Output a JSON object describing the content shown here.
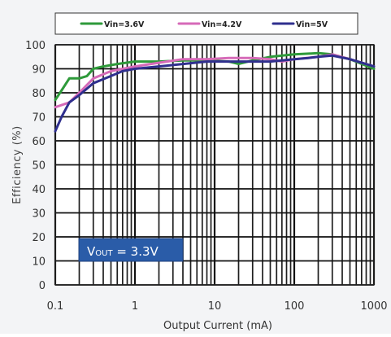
{
  "chart_data": {
    "type": "line",
    "xlabel": "Output Current (mA)",
    "ylabel": "Efficiency (%)",
    "xscale": "log",
    "xlim": [
      0.1,
      1000
    ],
    "ylim": [
      0,
      100
    ],
    "x_ticks": [
      {
        "value": 0.1,
        "label": "0.1"
      },
      {
        "value": 1,
        "label": "1"
      },
      {
        "value": 10,
        "label": "10"
      },
      {
        "value": 100,
        "label": "100"
      },
      {
        "value": 1000,
        "label": "1000"
      }
    ],
    "y_ticks": [
      {
        "value": 0,
        "label": "0"
      },
      {
        "value": 10,
        "label": "10"
      },
      {
        "value": 20,
        "label": "20"
      },
      {
        "value": 30,
        "label": "30"
      },
      {
        "value": 40,
        "label": "40"
      },
      {
        "value": 50,
        "label": "50"
      },
      {
        "value": 60,
        "label": "60"
      },
      {
        "value": 70,
        "label": "70"
      },
      {
        "value": 80,
        "label": "80"
      },
      {
        "value": 90,
        "label": "90"
      },
      {
        "value": 100,
        "label": "100"
      }
    ],
    "grid": true,
    "legend_position": "top",
    "annotation": {
      "main": "V",
      "sub": "OUT",
      "rest": " = 3.3V"
    },
    "series": [
      {
        "name": "Vin=3.6V",
        "color": "#2e9a3a",
        "x": [
          0.1,
          0.12,
          0.15,
          0.2,
          0.25,
          0.3,
          0.4,
          0.6,
          1,
          2,
          4,
          8,
          15,
          20,
          30,
          50,
          100,
          200,
          300,
          500,
          1000
        ],
        "y": [
          77,
          81,
          86,
          86,
          87,
          90,
          91,
          92,
          93,
          93,
          93.5,
          93.5,
          93,
          92,
          93.5,
          95,
          96,
          96.5,
          96,
          94,
          90
        ]
      },
      {
        "name": "Vin=4.2V",
        "color": "#d66ab8",
        "x": [
          0.1,
          0.15,
          0.2,
          0.3,
          0.5,
          1,
          2,
          4,
          8,
          15,
          20,
          30,
          50,
          70,
          100,
          200,
          300,
          500,
          1000
        ],
        "y": [
          74,
          76,
          80,
          86,
          89,
          91,
          92.5,
          94,
          94,
          94.5,
          94.5,
          94.5,
          94,
          93,
          94,
          95,
          96,
          94,
          91
        ]
      },
      {
        "name": "Vin=5V",
        "color": "#2f2f8e",
        "x": [
          0.1,
          0.12,
          0.15,
          0.2,
          0.3,
          0.5,
          0.7,
          1,
          2,
          4,
          8,
          15,
          30,
          50,
          100,
          150,
          200,
          300,
          500,
          1000
        ],
        "y": [
          64,
          70,
          76,
          79,
          84,
          87,
          89,
          90,
          91,
          92,
          93,
          93,
          93,
          93,
          94,
          94.5,
          95,
          95.5,
          94,
          91
        ]
      }
    ]
  }
}
